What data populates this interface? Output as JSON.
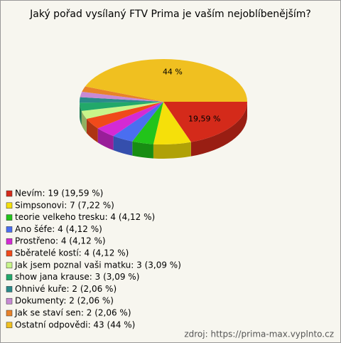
{
  "chart_data": {
    "type": "pie",
    "title": "Jaký pořad vysílaný FTV Prima je vaším nejoblíbenějším?",
    "categories": [
      "Nevím",
      "Simpsonovi",
      "teorie velkeho tresku",
      "Ano šéfe",
      "Prostřeno",
      "Sběratelé kostí",
      "Jak jsem poznal vaši matku",
      "show jana krause",
      "Ohnivé kuře",
      "Dokumenty",
      "Jak se staví sen",
      "Ostatní odpovědi"
    ],
    "legend_labels": [
      "Nevím: 19 (19,59 %)",
      "Simpsonovi: 7 (7,22 %)",
      "teorie velkeho tresku: 4 (4,12 %)",
      "Ano šéfe: 4 (4,12 %)",
      "Prostřeno: 4 (4,12 %)",
      "Sběratelé kostí: 4 (4,12 %)",
      "Jak jsem poznal vaši matku: 3 (3,09 %)",
      "show jana krause: 3 (3,09 %)",
      "Ohnivé kuře: 2 (2,06 %)",
      "Dokumenty: 2 (2,06 %)",
      "Jak se staví sen: 2 (2,06 %)",
      "Ostatní odpovědi: 43 (44 %)"
    ],
    "counts": [
      19,
      7,
      4,
      4,
      4,
      4,
      3,
      3,
      2,
      2,
      2,
      43
    ],
    "values": [
      19.59,
      7.22,
      4.12,
      4.12,
      4.12,
      4.12,
      3.09,
      3.09,
      2.06,
      2.06,
      2.06,
      44
    ],
    "value_labels": [
      "19,59 %",
      null,
      null,
      null,
      null,
      null,
      null,
      null,
      null,
      null,
      null,
      "44 %"
    ],
    "colors": [
      "#d42a1a",
      "#f5e00a",
      "#22c41a",
      "#4a6ef0",
      "#d42ad4",
      "#f04a1a",
      "#c8f58a",
      "#22a86a",
      "#2a8a8a",
      "#c88ad4",
      "#e8822a",
      "#f0c020"
    ],
    "source": "zdroj: https://prima-max.vyplnto.cz"
  }
}
